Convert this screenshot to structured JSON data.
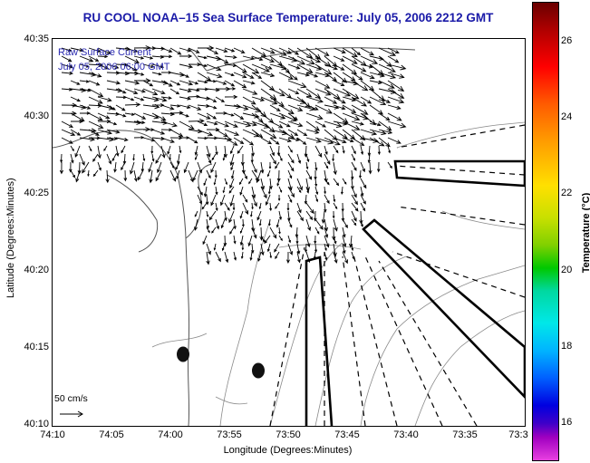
{
  "title": "RU COOL  NOAA–15  Sea Surface Temperature:  July 05, 2006 2212 GMT",
  "inset": {
    "line1": "Raw Surface Current",
    "line2": "July 05, 2006 06:00 GMT"
  },
  "axes": {
    "y_label": "Latitude (Degrees:Minutes)",
    "x_label": "Longitude (Degrees:Minutes)",
    "y_ticks": [
      "40:35",
      "40:30",
      "40:25",
      "40:20",
      "40:15",
      "40:10"
    ],
    "x_ticks": [
      "74:10",
      "74:05",
      "74:00",
      "73:55",
      "73:50",
      "73:45",
      "73:40",
      "73:35",
      "73:3"
    ]
  },
  "scale": {
    "label": "50 cm/s"
  },
  "colorbar": {
    "label": "Temperature (°C)",
    "ticks": [
      "26",
      "24",
      "22",
      "20",
      "18",
      "16"
    ]
  },
  "colors": {
    "title": "#1a1aa8",
    "inset_text": "#2a2ab0",
    "coast": "#555555",
    "vectors": "#000000"
  }
}
